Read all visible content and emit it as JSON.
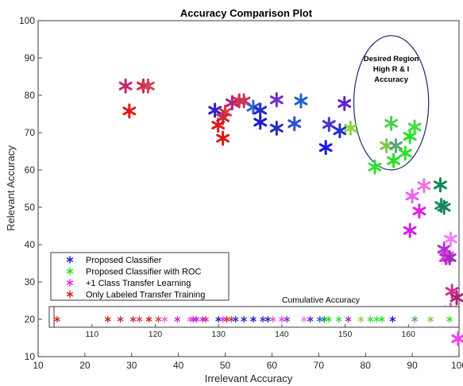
{
  "chart_data": {
    "type": "scatter",
    "title": "Accuracy Comparison Plot",
    "xlabel": "Irrelevant Accuracy",
    "ylabel": "Relevant Accuracy",
    "xlim": [
      10,
      100
    ],
    "ylim": [
      10,
      100
    ],
    "xticks": [
      10,
      20,
      30,
      40,
      50,
      60,
      70,
      80,
      90,
      100
    ],
    "yticks": [
      10,
      20,
      30,
      40,
      50,
      60,
      70,
      80,
      90,
      100
    ],
    "grid": false,
    "legend_position": "bottom-left",
    "legend": [
      {
        "label": "Proposed Classifier",
        "color": "#1a1ad8"
      },
      {
        "label": "Proposed Classifier with ROC",
        "color": "#22e022"
      },
      {
        "label": "+1 Class Transfer Learning",
        "color": "#f020f0"
      },
      {
        "label": "Only Labeled Transfer Training",
        "color": "#e01818"
      }
    ],
    "points": [
      {
        "x": 28.7,
        "y": 82.5,
        "color": "#c02868"
      },
      {
        "x": 32.5,
        "y": 82.5,
        "color": "#c8304a"
      },
      {
        "x": 33.5,
        "y": 82.5,
        "color": "#d8405a"
      },
      {
        "x": 29.5,
        "y": 75.8,
        "color": "#e01818"
      },
      {
        "x": 47.8,
        "y": 76.0,
        "color": "#3020d0"
      },
      {
        "x": 50.0,
        "y": 75.5,
        "color": "#d83a3a"
      },
      {
        "x": 49.5,
        "y": 74.0,
        "color": "#cc2a44"
      },
      {
        "x": 48.5,
        "y": 72.0,
        "color": "#e01818"
      },
      {
        "x": 49.5,
        "y": 68.5,
        "color": "#e01818"
      },
      {
        "x": 51.5,
        "y": 78.0,
        "color": "#b02080"
      },
      {
        "x": 53.0,
        "y": 78.5,
        "color": "#d03050"
      },
      {
        "x": 54.0,
        "y": 78.5,
        "color": "#c83858"
      },
      {
        "x": 56.0,
        "y": 76.8,
        "color": "#3060d8"
      },
      {
        "x": 57.5,
        "y": 76.0,
        "color": "#2030c8"
      },
      {
        "x": 57.5,
        "y": 72.8,
        "color": "#1a1ad8"
      },
      {
        "x": 61.0,
        "y": 78.8,
        "color": "#7030c8"
      },
      {
        "x": 61.0,
        "y": 71.2,
        "color": "#2430c8"
      },
      {
        "x": 64.8,
        "y": 72.4,
        "color": "#3050d0"
      },
      {
        "x": 66.2,
        "y": 78.5,
        "color": "#2060d0"
      },
      {
        "x": 71.5,
        "y": 66.0,
        "color": "#1a1ad8"
      },
      {
        "x": 72.2,
        "y": 72.2,
        "color": "#5030c8"
      },
      {
        "x": 74.5,
        "y": 70.5,
        "color": "#2030c8"
      },
      {
        "x": 75.5,
        "y": 77.8,
        "color": "#6020d0"
      },
      {
        "x": 76.8,
        "y": 71.2,
        "color": "#88d840"
      },
      {
        "x": 82.0,
        "y": 60.8,
        "color": "#30e030"
      },
      {
        "x": 84.5,
        "y": 66.5,
        "color": "#80c848"
      },
      {
        "x": 85.5,
        "y": 72.5,
        "color": "#50d050"
      },
      {
        "x": 86.0,
        "y": 62.5,
        "color": "#22e022"
      },
      {
        "x": 86.5,
        "y": 66.5,
        "color": "#60a080"
      },
      {
        "x": 88.5,
        "y": 64.5,
        "color": "#30e030"
      },
      {
        "x": 89.5,
        "y": 69.0,
        "color": "#22e022"
      },
      {
        "x": 90.5,
        "y": 71.5,
        "color": "#40e040"
      },
      {
        "x": 90.0,
        "y": 53.0,
        "color": "#f060f0"
      },
      {
        "x": 91.5,
        "y": 49.0,
        "color": "#e020e0"
      },
      {
        "x": 92.5,
        "y": 55.8,
        "color": "#f070e0"
      },
      {
        "x": 89.5,
        "y": 43.8,
        "color": "#d020e0"
      },
      {
        "x": 96.0,
        "y": 56.0,
        "color": "#108858"
      },
      {
        "x": 96.2,
        "y": 50.5,
        "color": "#109060"
      },
      {
        "x": 96.8,
        "y": 50.0,
        "color": "#208060"
      },
      {
        "x": 96.8,
        "y": 38.8,
        "color": "#b030d0"
      },
      {
        "x": 97.2,
        "y": 36.5,
        "color": "#d020e0"
      },
      {
        "x": 97.5,
        "y": 37.0,
        "color": "#e040e0"
      },
      {
        "x": 98.0,
        "y": 36.5,
        "color": "#a030c0"
      },
      {
        "x": 98.2,
        "y": 41.5,
        "color": "#f080f0"
      },
      {
        "x": 98.5,
        "y": 27.5,
        "color": "#d03090"
      },
      {
        "x": 98.2,
        "y": 22.5,
        "color": "#e060c0"
      },
      {
        "x": 99.5,
        "y": 25.8,
        "color": "#b02070"
      },
      {
        "x": 99.8,
        "y": 14.8,
        "color": "#f040f0"
      }
    ],
    "annotation": {
      "lines": [
        "Desired Region",
        "High R & I",
        "Accuracy"
      ],
      "ellipse_center": [
        85.5,
        78.0
      ],
      "ellipse_radius": [
        8.0,
        18.0
      ]
    },
    "inset": {
      "title": "Cumulative Accuracy",
      "xlim": [
        104,
        168
      ],
      "xticks": [
        110,
        120,
        130,
        140,
        150,
        160
      ],
      "y_value": 20,
      "points": [
        {
          "x": 104.5,
          "color": "#e01818"
        },
        {
          "x": 112.5,
          "color": "#e01818"
        },
        {
          "x": 114.5,
          "color": "#c02868"
        },
        {
          "x": 116.5,
          "color": "#c8304a"
        },
        {
          "x": 117.5,
          "color": "#d8405a"
        },
        {
          "x": 119.0,
          "color": "#e01818"
        },
        {
          "x": 120.5,
          "color": "#d83a3a"
        },
        {
          "x": 121.5,
          "color": "#f060f0"
        },
        {
          "x": 123.5,
          "color": "#d020e0"
        },
        {
          "x": 125.5,
          "color": "#f070e0"
        },
        {
          "x": 126.0,
          "color": "#e020e0"
        },
        {
          "x": 126.5,
          "color": "#b030d0"
        },
        {
          "x": 127.5,
          "color": "#d020e0"
        },
        {
          "x": 128.0,
          "color": "#d03090"
        },
        {
          "x": 130.0,
          "color": "#1a1ad8"
        },
        {
          "x": 130.7,
          "color": "#e040e0"
        },
        {
          "x": 131.3,
          "color": "#cc2a44"
        },
        {
          "x": 132.0,
          "color": "#d03050"
        },
        {
          "x": 132.7,
          "color": "#2030c8"
        },
        {
          "x": 134.0,
          "color": "#3020d0"
        },
        {
          "x": 135.5,
          "color": "#1a1ad8"
        },
        {
          "x": 137.0,
          "color": "#5030c8"
        },
        {
          "x": 137.8,
          "color": "#2430c8"
        },
        {
          "x": 138.6,
          "color": "#e060c0"
        },
        {
          "x": 140.0,
          "color": "#f040f0"
        },
        {
          "x": 140.8,
          "color": "#7030c8"
        },
        {
          "x": 143.5,
          "color": "#f080f0"
        },
        {
          "x": 144.5,
          "color": "#6020d0"
        },
        {
          "x": 146.0,
          "color": "#3060d8"
        },
        {
          "x": 146.7,
          "color": "#108858"
        },
        {
          "x": 147.4,
          "color": "#22e022"
        },
        {
          "x": 149.0,
          "color": "#30e030"
        },
        {
          "x": 150.5,
          "color": "#a030c0"
        },
        {
          "x": 152.5,
          "color": "#88d840"
        },
        {
          "x": 154.0,
          "color": "#50d050"
        },
        {
          "x": 155.0,
          "color": "#40e040"
        },
        {
          "x": 155.8,
          "color": "#22e022"
        },
        {
          "x": 157.5,
          "color": "#1a1ad8"
        },
        {
          "x": 161.0,
          "color": "#60a080"
        },
        {
          "x": 163.5,
          "color": "#80c848"
        },
        {
          "x": 166.5,
          "color": "#22e022"
        }
      ]
    }
  }
}
